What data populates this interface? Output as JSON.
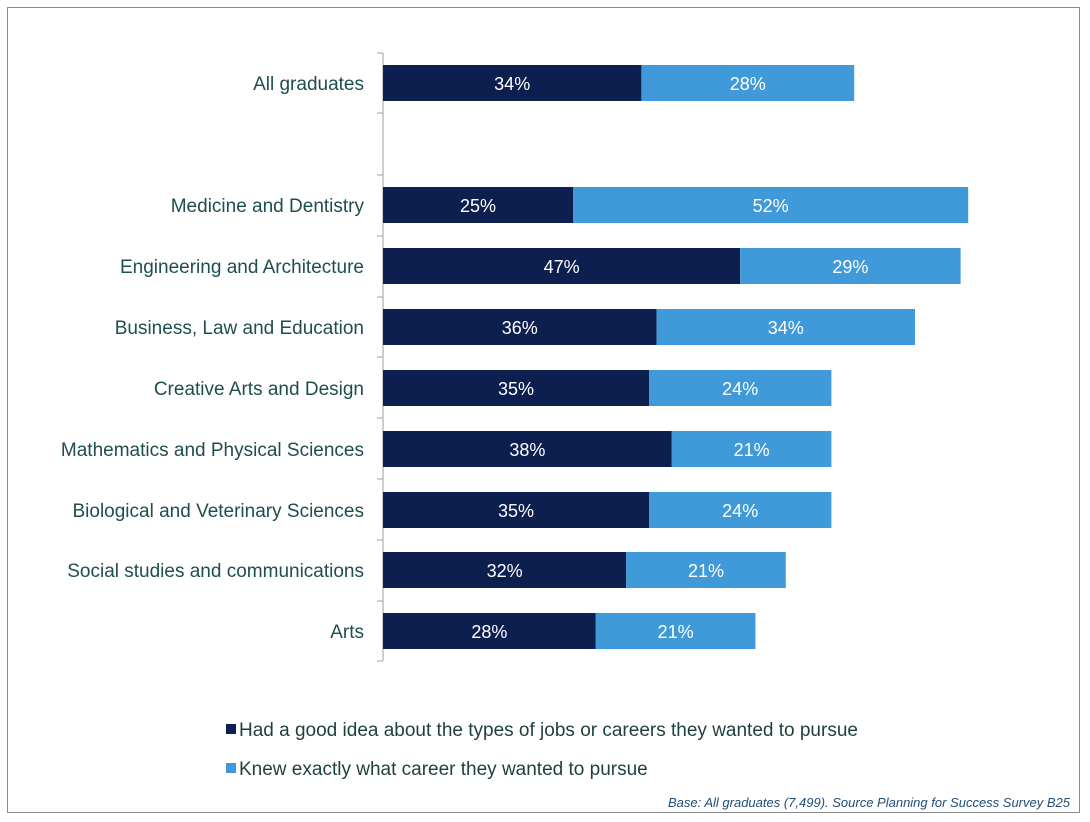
{
  "chart_data": {
    "type": "bar",
    "orientation": "horizontal",
    "stacked": true,
    "categories": [
      "All graduates",
      "Medicine and Dentistry",
      "Engineering and Architecture",
      "Business, Law and Education",
      "Creative Arts and Design",
      "Mathematics and Physical Sciences",
      "Biological and Veterinary Sciences",
      "Social studies and communications",
      "Arts"
    ],
    "series": [
      {
        "name": "Had a good idea about the types of jobs or careers they wanted to pursue",
        "color": "#0d1f4f",
        "values": [
          34,
          25,
          47,
          36,
          35,
          38,
          35,
          32,
          28
        ],
        "labels": [
          "34%",
          "25%",
          "47%",
          "36%",
          "35%",
          "38%",
          "35%",
          "32%",
          "28%"
        ]
      },
      {
        "name": "Knew exactly what career they wanted to pursue",
        "color": "#4099d8",
        "values": [
          28,
          52,
          29,
          34,
          24,
          21,
          24,
          21,
          21
        ],
        "labels": [
          "28%",
          "52%",
          "29%",
          "34%",
          "24%",
          "21%",
          "24%",
          "21%",
          "21%"
        ]
      }
    ],
    "xlim": [
      0,
      100
    ],
    "xlabel": "",
    "ylabel": "",
    "grid": false,
    "legend_position": "bottom",
    "source": "Base: All graduates (7,499). Source Planning for Success Survey B25"
  }
}
